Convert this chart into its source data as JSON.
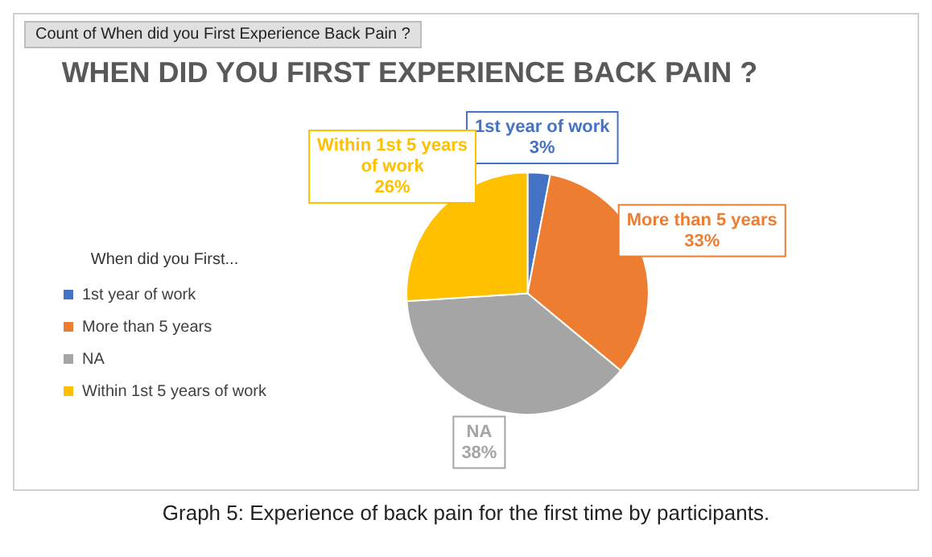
{
  "chart_data": {
    "type": "pie",
    "title": "WHEN DID YOU FIRST EXPERIENCE BACK PAIN ?",
    "legend_title": "When did you First...",
    "annotations": [
      "Count of When did you First Experience Back Pain ?",
      "Graph 5: Experience of back pain for the first time by participants."
    ],
    "categories": [
      "1st year of work",
      "More than 5 years",
      "NA",
      "Within 1st 5 years of work"
    ],
    "values": [
      3,
      33,
      38,
      26
    ],
    "value_labels": [
      "3%",
      "33%",
      "38%",
      "26%"
    ],
    "colors": [
      "#4472c4",
      "#ed7d31",
      "#a5a5a5",
      "#ffc000"
    ],
    "legend": "left"
  }
}
